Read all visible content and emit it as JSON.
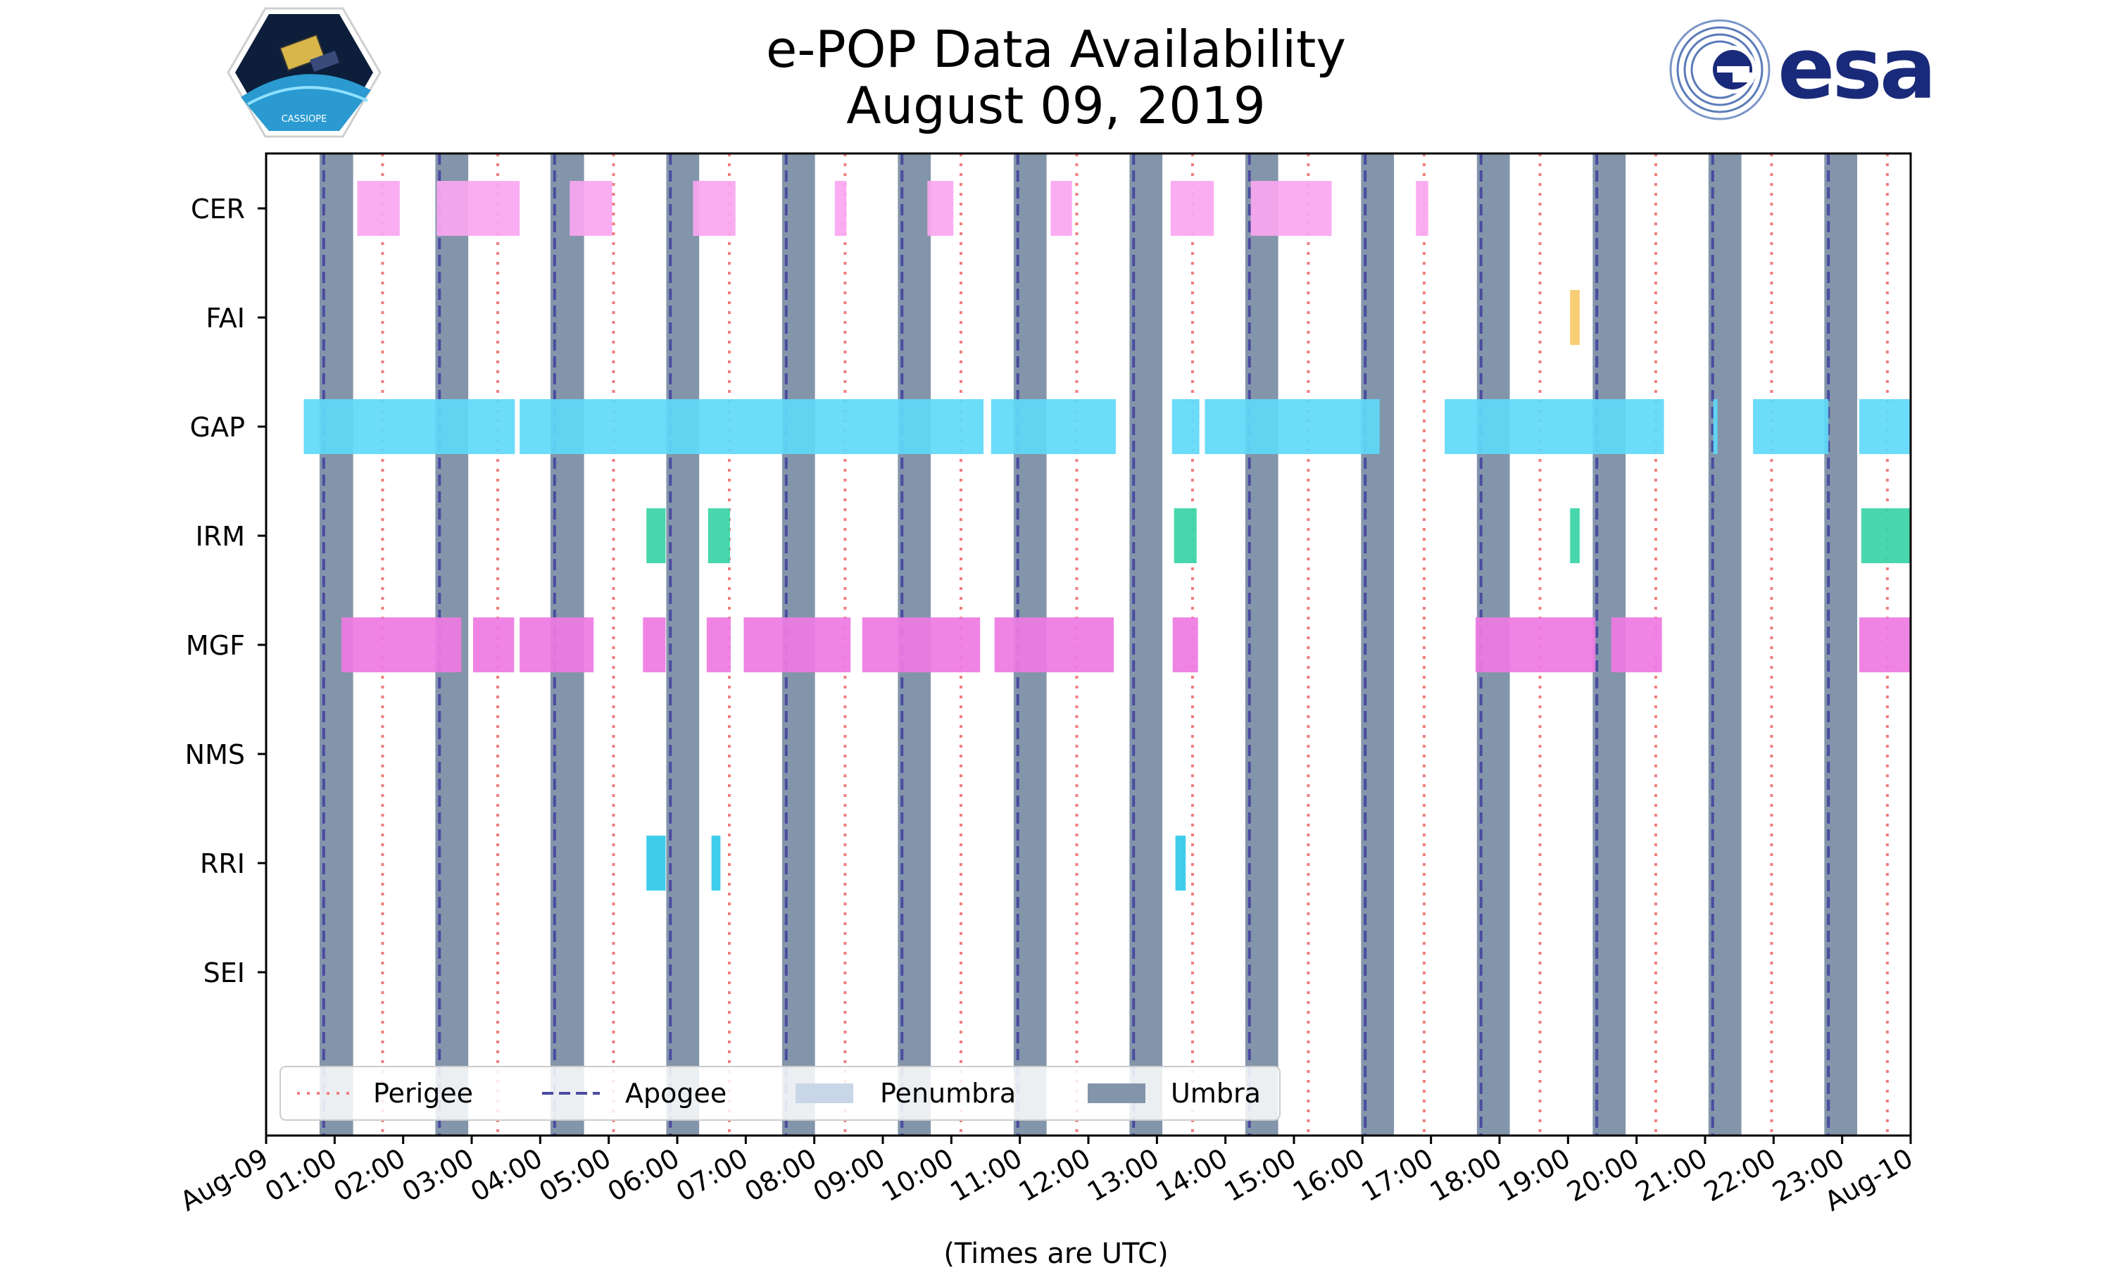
{
  "title_line1": "e-POP Data Availability",
  "title_line2": "August 09, 2019",
  "cassiope_label": "CASSIOPE",
  "esa_label": "esa",
  "chart_data": {
    "type": "timeline",
    "xlabel": "(Times are UTC)",
    "xlim_hours": [
      0,
      24
    ],
    "x_tick_hours": [
      0,
      1,
      2,
      3,
      4,
      5,
      6,
      7,
      8,
      9,
      10,
      11,
      12,
      13,
      14,
      15,
      16,
      17,
      18,
      19,
      20,
      21,
      22,
      23,
      24
    ],
    "x_tick_labels": [
      "Aug-09",
      "01:00",
      "02:00",
      "03:00",
      "04:00",
      "05:00",
      "06:00",
      "07:00",
      "08:00",
      "09:00",
      "10:00",
      "11:00",
      "12:00",
      "13:00",
      "14:00",
      "15:00",
      "16:00",
      "17:00",
      "18:00",
      "19:00",
      "20:00",
      "21:00",
      "22:00",
      "23:00",
      "Aug-10"
    ],
    "instruments": [
      "CER",
      "FAI",
      "GAP",
      "IRM",
      "MGF",
      "NMS",
      "RRI",
      "SEI"
    ],
    "colors": {
      "CER": "#fba6f0",
      "FAI": "#f7c96a",
      "GAP": "#5ed9f8",
      "IRM": "#38d4a6",
      "MGF": "#ef79e2",
      "RRI": "#2fc9ea",
      "perigee": "#f07d7d",
      "apogee": "#4b4ba0",
      "penumbra": "#c8d6e8",
      "umbra": "#8395aa"
    },
    "umbra_hours": [
      [
        0.78,
        1.27
      ],
      [
        2.47,
        2.95
      ],
      [
        4.15,
        4.64
      ],
      [
        5.84,
        6.32
      ],
      [
        7.53,
        8.01
      ],
      [
        9.22,
        9.7
      ],
      [
        10.91,
        11.39
      ],
      [
        12.6,
        13.08
      ],
      [
        14.29,
        14.77
      ],
      [
        15.98,
        16.46
      ],
      [
        17.67,
        18.15
      ],
      [
        19.36,
        19.84
      ],
      [
        21.05,
        21.53
      ],
      [
        22.74,
        23.22
      ]
    ],
    "apogee_hours": [
      0.84,
      2.53,
      4.21,
      5.9,
      7.59,
      9.28,
      10.97,
      12.66,
      14.35,
      16.04,
      17.73,
      19.42,
      21.11,
      22.8
    ],
    "perigee_hours": [
      1.7,
      3.38,
      5.07,
      6.76,
      8.45,
      10.14,
      11.83,
      13.52,
      15.21,
      16.9,
      18.59,
      20.28,
      21.97,
      23.66
    ],
    "series": [
      {
        "name": "CER",
        "intervals": [
          [
            1.33,
            1.95
          ],
          [
            2.49,
            3.7
          ],
          [
            4.43,
            5.05
          ],
          [
            6.23,
            6.85
          ],
          [
            8.3,
            8.47
          ],
          [
            9.65,
            10.03
          ],
          [
            11.45,
            11.76
          ],
          [
            13.2,
            13.83
          ],
          [
            14.37,
            15.55
          ],
          [
            16.78,
            16.96
          ]
        ]
      },
      {
        "name": "FAI",
        "intervals": [
          [
            19.03,
            19.17
          ]
        ]
      },
      {
        "name": "GAP",
        "intervals": [
          [
            0.55,
            3.63
          ],
          [
            3.7,
            10.47
          ],
          [
            10.58,
            12.4
          ],
          [
            13.22,
            13.62
          ],
          [
            13.7,
            16.25
          ],
          [
            17.2,
            20.4
          ],
          [
            21.12,
            21.18
          ],
          [
            21.7,
            22.8
          ],
          [
            23.25,
            24.0
          ]
        ]
      },
      {
        "name": "IRM",
        "intervals": [
          [
            5.55,
            5.83
          ],
          [
            6.45,
            6.77
          ],
          [
            13.25,
            13.58
          ],
          [
            19.03,
            19.17
          ],
          [
            23.28,
            24.0
          ]
        ]
      },
      {
        "name": "MGF",
        "intervals": [
          [
            1.1,
            2.85
          ],
          [
            3.02,
            3.62
          ],
          [
            3.7,
            4.78
          ],
          [
            5.5,
            5.83
          ],
          [
            6.43,
            6.78
          ],
          [
            6.97,
            8.53
          ],
          [
            8.7,
            10.42
          ],
          [
            10.63,
            12.37
          ],
          [
            13.23,
            13.6
          ],
          [
            17.65,
            19.4
          ],
          [
            19.63,
            20.37
          ],
          [
            23.25,
            24.0
          ]
        ]
      },
      {
        "name": "NMS",
        "intervals": []
      },
      {
        "name": "RRI",
        "intervals": [
          [
            5.55,
            5.83
          ],
          [
            6.5,
            6.63
          ],
          [
            13.27,
            13.42
          ]
        ]
      },
      {
        "name": "SEI",
        "intervals": []
      }
    ],
    "legend": [
      "Perigee",
      "Apogee",
      "Penumbra",
      "Umbra"
    ],
    "legend_position": "lower-left"
  }
}
